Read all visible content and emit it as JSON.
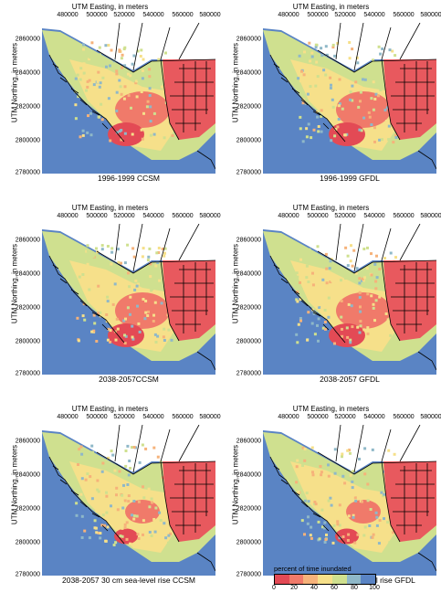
{
  "axes": {
    "x_title": "UTM Easting, in meters",
    "y_title": "UTM Northing, in meters",
    "x_ticks": [
      "480000",
      "500000",
      "520000",
      "540000",
      "560000",
      "580000"
    ],
    "y_ticks": [
      "2860000",
      "2840000",
      "2820000",
      "2800000",
      "2780000"
    ]
  },
  "panels": [
    {
      "caption": "1996-1999 CCSM"
    },
    {
      "caption": "1996-1999 GFDL"
    },
    {
      "caption": "2038-2057CCSM"
    },
    {
      "caption": "2038-2057 GFDL"
    },
    {
      "caption": "2038-2057 30 cm sea-level rise CCSM"
    },
    {
      "caption": "2038-2057 30 cm sea-level rise GFDL"
    }
  ],
  "legend": {
    "title": "percent of time inundated",
    "ticks": [
      "0",
      "20",
      "40",
      "60",
      "80",
      "100"
    ],
    "colors": [
      "#e34a55",
      "#f07a6a",
      "#f6b27a",
      "#f6e08a",
      "#cfe08f",
      "#8fb8c8",
      "#5a84c4"
    ]
  },
  "colors": {
    "water": "#5a84c4",
    "urban": "#e8595e",
    "land_out": "#ffffff"
  }
}
